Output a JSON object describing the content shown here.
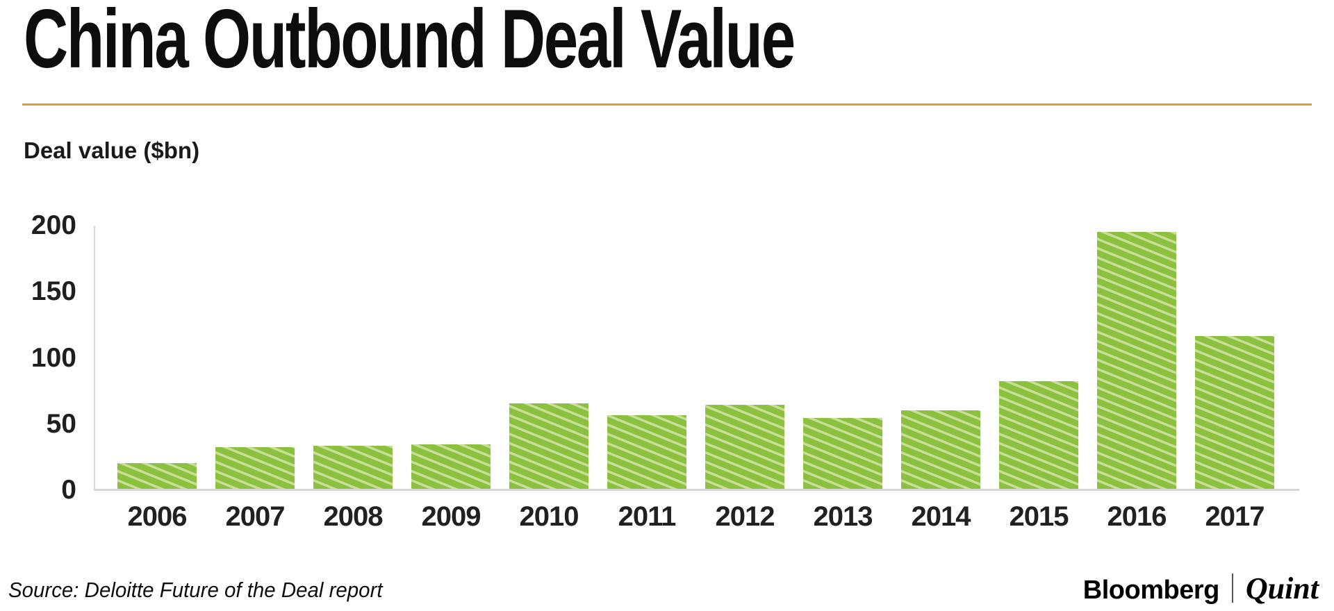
{
  "page": {
    "background": "#ffffff"
  },
  "header": {
    "title": "China Outbound Deal Value",
    "rule_color": "#DA9D32"
  },
  "chart_data": {
    "type": "bar",
    "title": "China Outbound Deal Value",
    "categories": [
      "2006",
      "2007",
      "2008",
      "2009",
      "2010",
      "2011",
      "2012",
      "2013",
      "2014",
      "2015",
      "2016",
      "2017"
    ],
    "values": [
      21,
      33,
      34,
      35,
      66,
      57,
      65,
      55,
      61,
      83,
      196,
      117
    ],
    "xlabel": "",
    "ylabel": "Deal value ($bn)",
    "ylim": [
      0,
      200
    ],
    "yticks": [
      0,
      50,
      100,
      150,
      200
    ],
    "grid": false,
    "legend": "none",
    "bar_color": "#8CC140",
    "bar_stripe_color": "#C8DE99",
    "axis_line_color": "#D6D6D6",
    "tick_label_color": "#1f1f1f"
  },
  "footer": {
    "source": "Source: Deloitte Future of the Deal report",
    "brand": {
      "bloomberg": "Bloomberg",
      "separator": "|",
      "quint": "Quint"
    }
  }
}
